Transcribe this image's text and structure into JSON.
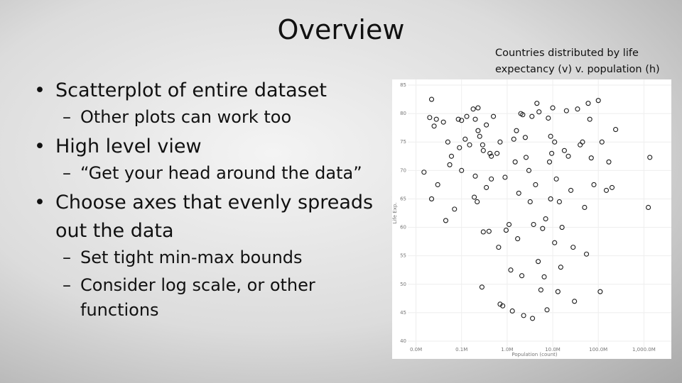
{
  "slide": {
    "title": "Overview",
    "bullets": [
      {
        "text": "Scatterplot of entire dataset",
        "sub": [
          "Other plots can work too"
        ]
      },
      {
        "text": "High level view",
        "sub": [
          "“Get your head around the data”"
        ]
      },
      {
        "text": "Choose axes that evenly spreads out the data",
        "sub": [
          "Set tight min-max bounds",
          "Consider log scale, or other functions"
        ]
      }
    ],
    "caption": "Countries distributed by life expectancy (v) v. population (h)"
  },
  "chart_data": {
    "type": "scatter",
    "x_label": "Population (count)",
    "y_label": "Life Exp.",
    "color": "#1a1a1a",
    "xscale": "log",
    "xlim": [
      4000,
      4000000000
    ],
    "ylim": [
      39,
      86
    ],
    "xticks": [
      {
        "value": 10000,
        "label": "0.0M"
      },
      {
        "value": 100000,
        "label": "0.1M"
      },
      {
        "value": 1000000,
        "label": "1.0M"
      },
      {
        "value": 10000000,
        "label": "10.0M"
      },
      {
        "value": 100000000,
        "label": "100.0M"
      },
      {
        "value": 1000000000,
        "label": "1,000.0M"
      }
    ],
    "yticks": [
      40,
      45,
      50,
      55,
      60,
      65,
      70,
      75,
      80,
      85
    ],
    "grid": true,
    "x": [
      15000,
      22000,
      20000,
      28000,
      40000,
      25000,
      30000,
      22000,
      45000,
      70000,
      50000,
      60000,
      55000,
      90000,
      85000,
      100000,
      130000,
      120000,
      150000,
      100000,
      180000,
      200000,
      230000,
      250000,
      300000,
      230000,
      190000,
      220000,
      200000,
      290000,
      350000,
      420000,
      500000,
      450000,
      300000,
      400000,
      450000,
      350000,
      280000,
      600000,
      700000,
      650000,
      900000,
      700000,
      800000,
      950000,
      1100000,
      1200000,
      1500000,
      1400000,
      1600000,
      2000000,
      2200000,
      2500000,
      1800000,
      1700000,
      1300000,
      2100000,
      2600000,
      3000000,
      3500000,
      3200000,
      3800000,
      4200000,
      4500000,
      5000000,
      2300000,
      3600000,
      4800000,
      5500000,
      6500000,
      8000000,
      9000000,
      9500000,
      7000000,
      6000000,
      7500000,
      8500000,
      10000000,
      11000000,
      12000000,
      13000000,
      15000000,
      16000000,
      18000000,
      20000000,
      22000000,
      25000000,
      28000000,
      30000000,
      35000000,
      40000000,
      45000000,
      50000000,
      55000000,
      60000000,
      65000000,
      70000000,
      80000000,
      100000000,
      110000000,
      120000000,
      150000000,
      170000000,
      200000000,
      240000000,
      1250000000,
      1350000000,
      9000000,
      14000000,
      11000000
    ],
    "values": [
      69.7,
      82.5,
      79.3,
      79,
      78.5,
      77.8,
      67.5,
      65,
      61.2,
      63.2,
      75,
      72.5,
      71,
      74,
      79,
      78.8,
      79.5,
      75.5,
      74.5,
      70,
      80.8,
      79,
      81,
      76,
      73.5,
      77,
      65.3,
      64.5,
      69,
      74.5,
      78,
      73,
      79.5,
      72.5,
      59.2,
      59.3,
      68.5,
      67,
      49.5,
      73,
      75,
      56.5,
      68.8,
      46.5,
      46.2,
      59.5,
      60.5,
      52.5,
      71.5,
      75.5,
      77,
      80,
      79.8,
      75.8,
      66,
      58,
      45.3,
      51.5,
      72.3,
      70,
      79.5,
      64.5,
      60.5,
      67.5,
      81.8,
      80.3,
      44.5,
      44,
      54,
      49,
      51.3,
      79.2,
      76,
      73,
      61.5,
      59.8,
      45.5,
      71.5,
      81,
      75,
      68.5,
      48.7,
      53,
      60,
      73.5,
      80.5,
      72.5,
      66.5,
      56.5,
      47,
      80.8,
      74.5,
      75,
      63.5,
      55.3,
      81.8,
      79,
      72.2,
      67.5,
      82.3,
      48.7,
      75,
      66.5,
      71.5,
      67,
      77.2,
      63.5,
      72.3,
      65,
      64.5,
      57.3
    ]
  }
}
